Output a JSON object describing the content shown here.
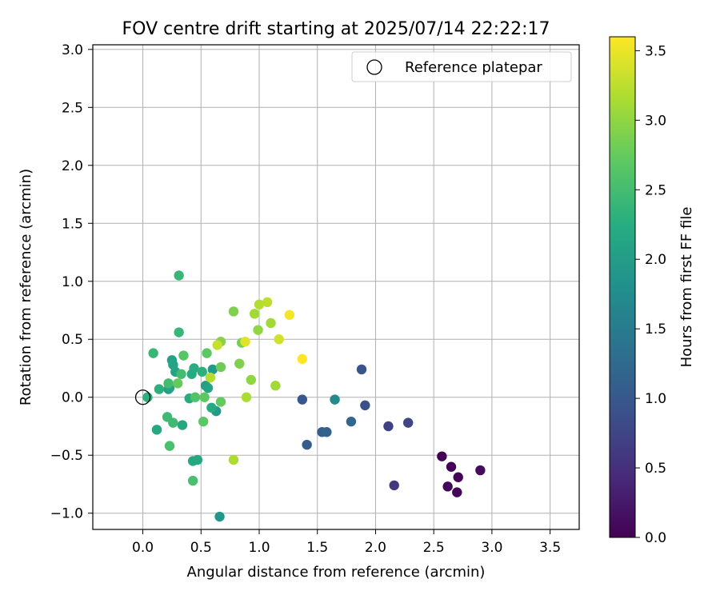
{
  "chart_data": {
    "type": "scatter",
    "title": "FOV centre drift starting at 2025/07/14 22:22:17",
    "xlabel": "Angular distance from reference (arcmin)",
    "ylabel": "Rotation from reference (arcmin)",
    "xlim": [
      -0.43,
      3.75
    ],
    "ylim": [
      -1.14,
      3.04
    ],
    "xticks": [
      0.0,
      0.5,
      1.0,
      1.5,
      2.0,
      2.5,
      3.0,
      3.5
    ],
    "xtick_labels": [
      "0.0",
      "0.5",
      "1.0",
      "1.5",
      "2.0",
      "2.5",
      "3.0",
      "3.5"
    ],
    "yticks": [
      -1.0,
      -0.5,
      0.0,
      0.5,
      1.0,
      1.5,
      2.0,
      2.5,
      3.0
    ],
    "ytick_labels": [
      "−1.0",
      "−0.5",
      "0.0",
      "0.5",
      "1.0",
      "1.5",
      "2.0",
      "2.5",
      "3.0"
    ],
    "grid": true,
    "legend": {
      "position": "top-right",
      "entries": [
        {
          "label": "Reference platepar",
          "marker": "open-circle",
          "x": 0.0,
          "y": 0.0
        }
      ]
    },
    "colorbar": {
      "label": "Hours from first FF file",
      "colormap": "viridis",
      "range": [
        0.0,
        3.6
      ],
      "ticks": [
        0.0,
        0.5,
        1.0,
        1.5,
        2.0,
        2.5,
        3.0,
        3.5
      ],
      "tick_labels": [
        "0.0",
        "0.5",
        "1.0",
        "1.5",
        "2.0",
        "2.5",
        "3.0",
        "3.5"
      ]
    },
    "series": [
      {
        "points": [
          {
            "x": 2.57,
            "y": -0.51,
            "hours": 0.0
          },
          {
            "x": 2.65,
            "y": -0.6,
            "hours": 0.02
          },
          {
            "x": 2.71,
            "y": -0.69,
            "hours": 0.04
          },
          {
            "x": 2.62,
            "y": -0.77,
            "hours": 0.05
          },
          {
            "x": 2.7,
            "y": -0.82,
            "hours": 0.06
          },
          {
            "x": 2.9,
            "y": -0.63,
            "hours": 0.1
          },
          {
            "x": 2.16,
            "y": -0.76,
            "hours": 0.6
          },
          {
            "x": 2.11,
            "y": -0.25,
            "hours": 0.7
          },
          {
            "x": 2.28,
            "y": -0.22,
            "hours": 0.75
          },
          {
            "x": 1.91,
            "y": -0.07,
            "hours": 0.9
          },
          {
            "x": 1.88,
            "y": 0.24,
            "hours": 0.95
          },
          {
            "x": 1.37,
            "y": -0.02,
            "hours": 1.0
          },
          {
            "x": 1.41,
            "y": -0.41,
            "hours": 1.05
          },
          {
            "x": 1.54,
            "y": -0.3,
            "hours": 1.1
          },
          {
            "x": 1.58,
            "y": -0.3,
            "hours": 1.15
          },
          {
            "x": 1.79,
            "y": -0.21,
            "hours": 1.2
          },
          {
            "x": 1.65,
            "y": -0.02,
            "hours": 1.7
          },
          {
            "x": 0.66,
            "y": -1.03,
            "hours": 1.9
          },
          {
            "x": 0.63,
            "y": -0.12,
            "hours": 1.95
          },
          {
            "x": 0.6,
            "y": 0.24,
            "hours": 1.95
          },
          {
            "x": 0.22,
            "y": 0.07,
            "hours": 2.0
          },
          {
            "x": 0.54,
            "y": 0.1,
            "hours": 2.0
          },
          {
            "x": 0.25,
            "y": 0.32,
            "hours": 2.05
          },
          {
            "x": 0.28,
            "y": 0.22,
            "hours": 2.1
          },
          {
            "x": 0.23,
            "y": 0.08,
            "hours": 2.1
          },
          {
            "x": 0.26,
            "y": 0.28,
            "hours": 2.1
          },
          {
            "x": 0.56,
            "y": 0.08,
            "hours": 2.1
          },
          {
            "x": 0.12,
            "y": -0.28,
            "hours": 2.15
          },
          {
            "x": 0.34,
            "y": -0.24,
            "hours": 2.15
          },
          {
            "x": 0.43,
            "y": -0.55,
            "hours": 2.15
          },
          {
            "x": 0.47,
            "y": -0.54,
            "hours": 2.15
          },
          {
            "x": 0.59,
            "y": -0.09,
            "hours": 2.2
          },
          {
            "x": 0.4,
            "y": -0.01,
            "hours": 2.2
          },
          {
            "x": 0.42,
            "y": 0.2,
            "hours": 2.2
          },
          {
            "x": 0.44,
            "y": 0.25,
            "hours": 2.25
          },
          {
            "x": 0.51,
            "y": 0.22,
            "hours": 2.3
          },
          {
            "x": 0.14,
            "y": 0.07,
            "hours": 2.3
          },
          {
            "x": 0.04,
            "y": 0.0,
            "hours": 2.3
          },
          {
            "x": 0.31,
            "y": 1.05,
            "hours": 2.4
          },
          {
            "x": 0.31,
            "y": 0.56,
            "hours": 2.4
          },
          {
            "x": 0.09,
            "y": 0.38,
            "hours": 2.4
          },
          {
            "x": 0.26,
            "y": -0.22,
            "hours": 2.45
          },
          {
            "x": 0.21,
            "y": -0.17,
            "hours": 2.45
          },
          {
            "x": 0.22,
            "y": 0.12,
            "hours": 2.5
          },
          {
            "x": 0.33,
            "y": 0.2,
            "hours": 2.5
          },
          {
            "x": 0.23,
            "y": -0.42,
            "hours": 2.55
          },
          {
            "x": 0.43,
            "y": -0.72,
            "hours": 2.55
          },
          {
            "x": 0.45,
            "y": 0.0,
            "hours": 2.6
          },
          {
            "x": 0.35,
            "y": 0.36,
            "hours": 2.65
          },
          {
            "x": 0.53,
            "y": 0.0,
            "hours": 2.7
          },
          {
            "x": 0.52,
            "y": -0.21,
            "hours": 2.7
          },
          {
            "x": 0.55,
            "y": 0.38,
            "hours": 2.7
          },
          {
            "x": 0.3,
            "y": 0.12,
            "hours": 2.75
          },
          {
            "x": 0.67,
            "y": -0.04,
            "hours": 2.75
          },
          {
            "x": 0.67,
            "y": 0.26,
            "hours": 2.8
          },
          {
            "x": 0.85,
            "y": 0.47,
            "hours": 2.85
          },
          {
            "x": 0.83,
            "y": 0.29,
            "hours": 2.9
          },
          {
            "x": 0.78,
            "y": 0.74,
            "hours": 2.9
          },
          {
            "x": 0.67,
            "y": 0.48,
            "hours": 2.95
          },
          {
            "x": 0.93,
            "y": 0.15,
            "hours": 3.0
          },
          {
            "x": 0.99,
            "y": 0.58,
            "hours": 3.0
          },
          {
            "x": 0.96,
            "y": 0.72,
            "hours": 3.1
          },
          {
            "x": 1.1,
            "y": 0.64,
            "hours": 3.1
          },
          {
            "x": 1.14,
            "y": 0.1,
            "hours": 3.1
          },
          {
            "x": 0.78,
            "y": -0.54,
            "hours": 3.15
          },
          {
            "x": 0.89,
            "y": 0.0,
            "hours": 3.15
          },
          {
            "x": 0.58,
            "y": 0.17,
            "hours": 3.2
          },
          {
            "x": 1.0,
            "y": 0.8,
            "hours": 3.2
          },
          {
            "x": 1.07,
            "y": 0.82,
            "hours": 3.25
          },
          {
            "x": 0.64,
            "y": 0.45,
            "hours": 3.3
          },
          {
            "x": 1.17,
            "y": 0.5,
            "hours": 3.35
          },
          {
            "x": 0.88,
            "y": 0.48,
            "hours": 3.45
          },
          {
            "x": 1.26,
            "y": 0.71,
            "hours": 3.55
          },
          {
            "x": 1.37,
            "y": 0.33,
            "hours": 3.6
          }
        ]
      }
    ]
  }
}
